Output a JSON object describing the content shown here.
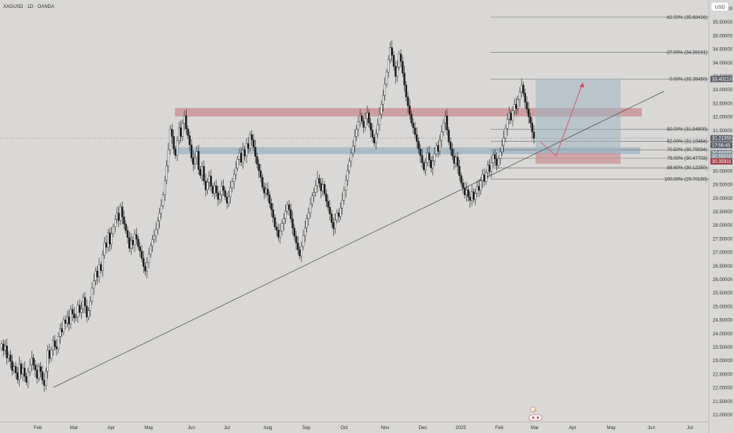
{
  "header": {
    "symbol_title": "XAGUSD · 1D · OANDA",
    "currency_label": "USD"
  },
  "chart_data": {
    "type": "candlestick",
    "title": "XAGUSD · 1D · OANDA",
    "price_axis_unit": "USD",
    "price_ticks": [
      "36.00000",
      "35.50000",
      "35.00000",
      "34.50000",
      "34.00000",
      "33.50000",
      "33.00000",
      "32.50000",
      "32.00000",
      "31.50000",
      "31.00000",
      "30.50000",
      "30.00000",
      "29.50000",
      "29.00000",
      "28.50000",
      "28.00000",
      "27.50000",
      "27.00000",
      "26.50000",
      "26.00000",
      "25.50000",
      "25.00000",
      "24.50000",
      "24.00000",
      "23.50000",
      "23.00000",
      "22.50000",
      "22.00000",
      "21.50000",
      "21.00000"
    ],
    "time_ticks": [
      "Feb",
      "Mar",
      "Apr",
      "May",
      "Jun",
      "Jul",
      "Aug",
      "Sep",
      "Oct",
      "Nov",
      "Dec",
      "2025",
      "Feb",
      "Mar",
      "Apr",
      "May",
      "Jun",
      "Jul"
    ],
    "ylim": [
      20.75,
      36.35
    ],
    "fib_levels": [
      {
        "label": "-62.00% (35.68416)",
        "price": 35.68416
      },
      {
        "label": "-27.00% (34.39161)",
        "price": 34.39161
      },
      {
        "label": "0.00% (33.39450)",
        "price": 33.3945
      },
      {
        "label": "50.00% (31.54800)",
        "price": 31.548
      },
      {
        "label": "62.00% (31.10484)",
        "price": 31.10484
      },
      {
        "label": "70.50% (30.79094)",
        "price": 30.79094
      },
      {
        "label": "79.00% (30.47703)",
        "price": 30.47703
      },
      {
        "label": "88.60% (30.12250)",
        "price": 30.1225
      },
      {
        "label": "100.00% (29.70150)",
        "price": 29.7015
      }
    ],
    "price_badges": [
      {
        "text": "33.40213",
        "price": 33.40213,
        "color": "#5d606b"
      },
      {
        "text": "31.21355",
        "price": 31.21355,
        "color": "#5d606b"
      },
      {
        "text": "17:56:45",
        "price": 30.96,
        "color": "#5d606b"
      },
      {
        "text": "30.66985",
        "price": 30.66985,
        "color": "#7f8c96"
      },
      {
        "text": "30.55000",
        "price": 30.55,
        "color": "#7f8c96"
      },
      {
        "text": "30.35911",
        "price": 30.35911,
        "color": "#a1434a"
      }
    ],
    "zones": [
      {
        "name": "resistance",
        "top": 32.33,
        "bottom": 32.02,
        "color": "#c98b8f"
      },
      {
        "name": "support",
        "top": 30.88,
        "bottom": 30.63,
        "color": "#9fb5c3"
      }
    ],
    "projection_box": {
      "target_top": 33.40213,
      "entry": 30.66985,
      "stop": 30.35911
    },
    "current_price": 31.21355,
    "trend_line": [
      [
        22.0,
        "Feb"
      ],
      [
        33.2,
        "Jun"
      ]
    ],
    "candles": [
      23.62,
      23.38,
      23.55,
      23.1,
      23.21,
      22.98,
      22.64,
      22.79,
      22.55,
      22.3,
      22.88,
      22.51,
      22.73,
      22.42,
      22.21,
      22.58,
      22.85,
      23.1,
      22.84,
      22.66,
      22.35,
      22.78,
      22.6,
      22.28,
      22.09,
      22.6,
      23.38,
      23.09,
      23.4,
      23.74,
      23.52,
      23.44,
      23.9,
      24.18,
      24.06,
      24.51,
      24.38,
      24.62,
      24.35,
      24.9,
      24.73,
      24.58,
      24.62,
      25.05,
      24.78,
      24.92,
      25.34,
      25.02,
      24.61,
      24.85,
      25.21,
      25.68,
      25.95,
      26.31,
      26.09,
      26.55,
      26.33,
      26.9,
      27.35,
      27.19,
      27.72,
      27.31,
      27.69,
      27.95,
      28.22,
      28.45,
      28.18,
      28.68,
      28.31,
      28.05,
      27.81,
      27.55,
      27.15,
      27.45,
      27.28,
      27.66,
      27.49,
      27.21,
      27.05,
      26.78,
      26.48,
      26.31,
      26.62,
      26.93,
      27.24,
      27.48,
      27.61,
      27.84,
      28.16,
      28.44,
      28.72,
      29.12,
      29.66,
      30.19,
      30.78,
      31.55,
      31.28,
      30.82,
      30.58,
      31.12,
      31.6,
      31.28,
      31.77,
      32.04,
      31.56,
      31.31,
      30.97,
      30.49,
      30.25,
      30.51,
      30.73,
      30.06,
      29.85,
      30.18,
      29.64,
      29.31,
      29.59,
      29.82,
      29.44,
      29.18,
      29.46,
      29.2,
      28.96,
      29.13,
      29.45,
      29.28,
      29.05,
      28.82,
      29.06,
      29.38,
      29.61,
      29.87,
      30.12,
      30.44,
      30.67,
      30.33,
      30.79,
      30.56,
      31.02,
      30.84,
      31.35,
      31.16,
      30.88,
      30.54,
      30.26,
      30.02,
      29.77,
      29.41,
      29.19,
      29.34,
      29.12,
      28.81,
      28.58,
      28.29,
      27.94,
      27.82,
      27.56,
      27.79,
      28.07,
      28.25,
      28.52,
      28.76,
      28.58,
      28.24,
      27.9,
      27.6,
      27.35,
      27.1,
      26.87,
      27.22,
      27.62,
      27.91,
      28.25,
      28.46,
      28.79,
      29.09,
      29.21,
      29.46,
      29.73,
      29.55,
      29.28,
      29.51,
      29.16,
      28.89,
      28.67,
      28.42,
      28.1,
      27.88,
      28.19,
      28.46,
      28.32,
      28.64,
      28.93,
      29.29,
      29.66,
      30.01,
      30.37,
      30.66,
      30.93,
      31.28,
      31.55,
      31.82,
      32.04,
      31.85,
      31.62,
      31.94,
      32.15,
      31.78,
      31.52,
      31.25,
      31.04,
      31.38,
      31.72,
      32.1,
      32.47,
      32.8,
      33.21,
      33.66,
      34.12,
      34.56,
      34.28,
      33.87,
      33.5,
      33.84,
      34.33,
      34.05,
      33.62,
      33.18,
      32.74,
      32.41,
      32.1,
      31.78,
      31.6,
      31.35,
      31.1,
      30.82,
      30.58,
      30.31,
      30.05,
      30.32,
      30.67,
      30.41,
      30.12,
      30.38,
      30.64,
      30.95,
      30.73,
      31.13,
      31.45,
      31.78,
      32.04,
      31.52,
      31.08,
      30.81,
      30.56,
      30.29,
      30.52,
      30.18,
      29.84,
      29.57,
      29.38,
      29.12,
      29.31,
      29.05,
      28.92,
      29.24,
      28.96,
      29.18,
      29.44,
      29.29,
      29.64,
      29.87,
      29.62,
      29.95,
      30.22,
      29.99,
      30.32,
      30.61,
      30.45,
      30.21,
      30.46,
      30.71,
      30.95,
      31.23,
      31.58,
      31.92,
      32.15,
      31.88,
      32.23,
      32.46,
      32.31,
      32.64,
      32.92,
      33.18,
      32.88,
      32.55,
      32.29,
      32.01,
      31.78,
      31.45,
      31.21
    ]
  }
}
